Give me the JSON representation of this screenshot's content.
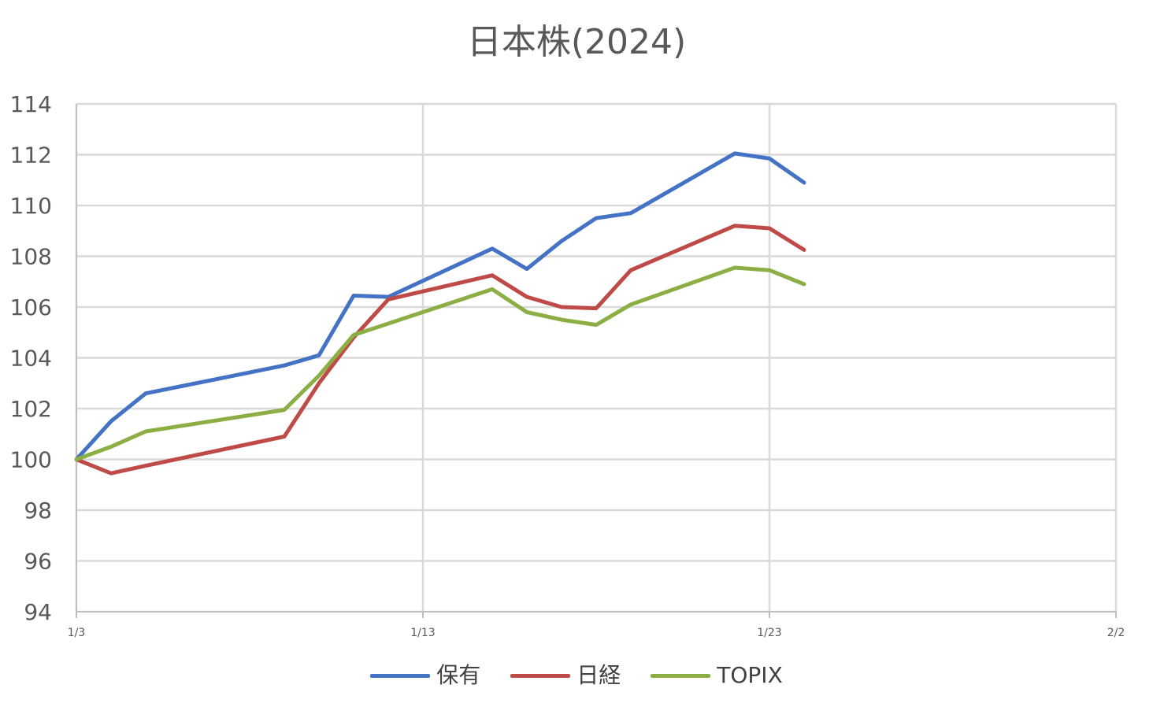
{
  "chart_data": {
    "type": "line",
    "title": "日本株(2024)",
    "xlabel": "",
    "ylabel": "",
    "x_range": [
      "2024-01-03",
      "2024-02-02"
    ],
    "x_ticks": [
      "1/3",
      "1/13",
      "1/23",
      "2/2"
    ],
    "ylim": [
      94,
      114
    ],
    "y_ticks": [
      "94",
      "96",
      "98",
      "100",
      "102",
      "104",
      "106",
      "108",
      "110",
      "112",
      "114"
    ],
    "grid": true,
    "legend_position": "bottom",
    "series": [
      {
        "name": "保有",
        "color": "#4472C4",
        "points": [
          {
            "date": "2024-01-03",
            "value": 100.0
          },
          {
            "date": "2024-01-04",
            "value": 101.5
          },
          {
            "date": "2024-01-05",
            "value": 102.6
          },
          {
            "date": "2024-01-09",
            "value": 103.7
          },
          {
            "date": "2024-01-10",
            "value": 104.1
          },
          {
            "date": "2024-01-11",
            "value": 106.45
          },
          {
            "date": "2024-01-12",
            "value": 106.4
          },
          {
            "date": "2024-01-15",
            "value": 108.3
          },
          {
            "date": "2024-01-16",
            "value": 107.5
          },
          {
            "date": "2024-01-17",
            "value": 108.6
          },
          {
            "date": "2024-01-18",
            "value": 109.5
          },
          {
            "date": "2024-01-19",
            "value": 109.7
          },
          {
            "date": "2024-01-22",
            "value": 112.05
          },
          {
            "date": "2024-01-23",
            "value": 111.85
          },
          {
            "date": "2024-01-24",
            "value": 110.9
          }
        ]
      },
      {
        "name": "日経",
        "color": "#BE4B48",
        "points": [
          {
            "date": "2024-01-03",
            "value": 100.0
          },
          {
            "date": "2024-01-04",
            "value": 99.45
          },
          {
            "date": "2024-01-05",
            "value": 99.75
          },
          {
            "date": "2024-01-09",
            "value": 100.9
          },
          {
            "date": "2024-01-10",
            "value": 103.0
          },
          {
            "date": "2024-01-11",
            "value": 104.8
          },
          {
            "date": "2024-01-12",
            "value": 106.3
          },
          {
            "date": "2024-01-15",
            "value": 107.25
          },
          {
            "date": "2024-01-16",
            "value": 106.4
          },
          {
            "date": "2024-01-17",
            "value": 106.0
          },
          {
            "date": "2024-01-18",
            "value": 105.95
          },
          {
            "date": "2024-01-19",
            "value": 107.45
          },
          {
            "date": "2024-01-22",
            "value": 109.2
          },
          {
            "date": "2024-01-23",
            "value": 109.1
          },
          {
            "date": "2024-01-24",
            "value": 108.25
          }
        ]
      },
      {
        "name": "TOPIX",
        "color": "#8BAF44",
        "points": [
          {
            "date": "2024-01-03",
            "value": 100.0
          },
          {
            "date": "2024-01-04",
            "value": 100.5
          },
          {
            "date": "2024-01-05",
            "value": 101.1
          },
          {
            "date": "2024-01-09",
            "value": 101.95
          },
          {
            "date": "2024-01-10",
            "value": 103.3
          },
          {
            "date": "2024-01-11",
            "value": 104.9
          },
          {
            "date": "2024-01-12",
            "value": 105.35
          },
          {
            "date": "2024-01-15",
            "value": 106.7
          },
          {
            "date": "2024-01-16",
            "value": 105.8
          },
          {
            "date": "2024-01-17",
            "value": 105.5
          },
          {
            "date": "2024-01-18",
            "value": 105.3
          },
          {
            "date": "2024-01-19",
            "value": 106.1
          },
          {
            "date": "2024-01-22",
            "value": 107.55
          },
          {
            "date": "2024-01-23",
            "value": 107.45
          },
          {
            "date": "2024-01-24",
            "value": 106.9
          }
        ]
      }
    ]
  },
  "style": {
    "grid_color": "#D9D9D9",
    "axis_color": "#BFBFBF",
    "text_color": "#595959"
  }
}
